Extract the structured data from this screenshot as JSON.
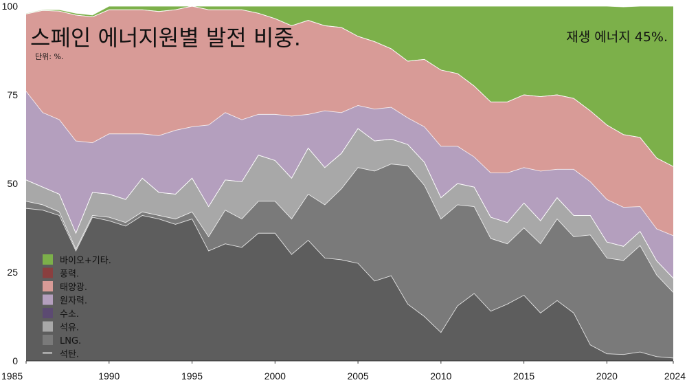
{
  "chart_data": {
    "type": "area",
    "stacked": true,
    "title": "스페인 에너지원별 발전 비중.",
    "subtitle": "단위: %.",
    "annotation": "재생 에너지 45%.",
    "x": [
      1985,
      1986,
      1987,
      1988,
      1989,
      1990,
      1991,
      1992,
      1993,
      1994,
      1995,
      1996,
      1997,
      1998,
      1999,
      2000,
      2001,
      2002,
      2003,
      2004,
      2005,
      2006,
      2007,
      2008,
      2009,
      2010,
      2011,
      2012,
      2013,
      2014,
      2015,
      2016,
      2017,
      2018,
      2019,
      2020,
      2021,
      2022,
      2023,
      2024
    ],
    "xticks": [
      1985,
      1990,
      1995,
      2000,
      2005,
      2010,
      2015,
      2020,
      2024
    ],
    "ylim": [
      0,
      100
    ],
    "yticks": [
      0,
      25,
      50,
      75,
      100
    ],
    "grid": false,
    "legend_position": "bottom-left",
    "series": [
      {
        "name": "석탄.",
        "color": "#5d5d5d",
        "values": [
          43,
          42.5,
          41,
          31,
          40.5,
          39.5,
          38,
          41,
          40,
          38.5,
          40,
          31,
          33,
          32,
          36,
          36,
          30,
          34,
          29,
          28.5,
          27.5,
          22.5,
          24,
          16,
          12.5,
          8,
          15.5,
          19,
          14,
          16,
          18.5,
          13.5,
          17,
          13.5,
          4.5,
          2,
          1.8,
          2.5,
          1.2,
          0.8
        ]
      },
      {
        "name": "LNG.",
        "color": "#7a7a7a",
        "values": [
          2,
          1.5,
          1,
          0.5,
          0.5,
          1,
          1,
          1,
          1,
          1.5,
          2,
          4,
          9.5,
          8,
          9,
          9,
          10,
          13,
          15,
          20,
          27,
          31,
          31.5,
          39,
          37,
          32,
          28.5,
          24.5,
          20.5,
          17,
          19,
          19.5,
          23,
          21.5,
          31,
          27,
          26.5,
          30,
          23,
          18.5
        ]
      },
      {
        "name": "석유.",
        "color": "#a8a8a8",
        "values": [
          6,
          5,
          5,
          4.5,
          6.5,
          6.5,
          6.5,
          9.5,
          6.5,
          7,
          9.5,
          8.5,
          8.5,
          10.5,
          13,
          11.5,
          11.5,
          13,
          10.5,
          10,
          11,
          8.5,
          7,
          6,
          6.5,
          6,
          6,
          5.5,
          6,
          6,
          7,
          6.5,
          6,
          6,
          5.5,
          4.5,
          4,
          4,
          4,
          4
        ]
      },
      {
        "name": "수소.",
        "color": "#5c4a72",
        "values": [
          0,
          0,
          0,
          0,
          0,
          0,
          0,
          0,
          0,
          0,
          0,
          0,
          0,
          0,
          0,
          0,
          0,
          0,
          0,
          0,
          0,
          0,
          0,
          0,
          0,
          0,
          0,
          0,
          0,
          0,
          0,
          0,
          0,
          0,
          0,
          0,
          0,
          0,
          0,
          0
        ]
      },
      {
        "name": "원자력.",
        "color": "#b49fbe",
        "values": [
          25,
          21,
          21,
          26,
          14,
          17,
          18.5,
          12.5,
          16,
          18,
          14.5,
          23,
          19,
          17.5,
          11.5,
          13,
          17.5,
          9.5,
          16,
          11.5,
          6.5,
          9,
          9,
          7.5,
          10,
          14.5,
          10.5,
          8.5,
          12.5,
          14,
          10,
          14,
          8,
          13,
          9.5,
          12,
          11,
          7,
          9,
          12
        ]
      },
      {
        "name": "태양광.",
        "color": "#d89b97",
        "values": [
          21.8,
          28.8,
          30.6,
          35.5,
          35.5,
          35,
          35,
          35,
          35,
          34,
          34,
          32.5,
          29,
          31,
          28.5,
          27,
          25.5,
          26.5,
          24,
          24,
          19.5,
          19,
          16.5,
          16,
          19,
          21.5,
          20.5,
          20,
          20,
          20,
          20.5,
          21,
          21,
          20,
          20,
          21,
          20.5,
          19.5,
          20,
          19.5
        ]
      },
      {
        "name": "풍력.",
        "color": "#8a3f3f",
        "values": [
          0,
          0,
          0,
          0,
          0,
          0,
          0,
          0,
          0,
          0,
          0,
          0,
          0,
          0,
          0,
          0,
          0,
          0,
          0,
          0,
          0,
          0,
          0,
          0,
          0,
          0,
          0,
          0,
          0,
          0,
          0,
          0,
          0,
          0,
          0,
          0,
          0,
          0,
          0,
          0
        ]
      },
      {
        "name": "바이오+기타.",
        "color": "#7cb04a",
        "values": [
          0.2,
          0.2,
          0.4,
          0.5,
          0.5,
          1,
          1,
          1,
          1.5,
          1,
          0.5,
          1,
          1.5,
          1,
          2,
          3.5,
          5.5,
          4,
          5.5,
          6,
          8.5,
          10,
          12,
          15.5,
          15,
          18,
          19,
          22.5,
          27,
          27,
          25,
          25.5,
          25,
          26,
          29.5,
          33.5,
          36,
          37,
          42.8,
          45.2
        ]
      }
    ]
  }
}
